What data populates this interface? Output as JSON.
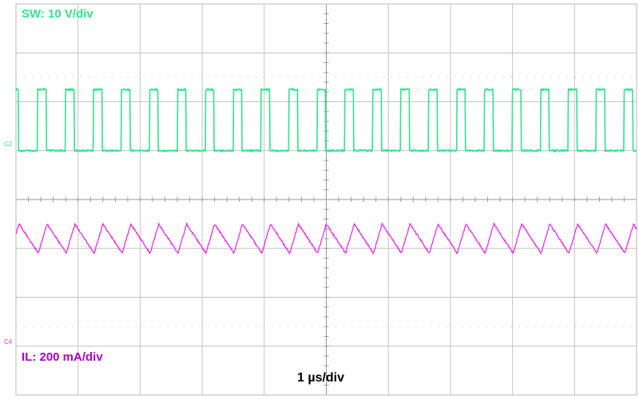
{
  "colors": {
    "background": "#ffffff",
    "frame": "#b8b8b8",
    "grid": "#c4c4c4",
    "center_axis": "#9a9a9a",
    "sw_trace": "#2ee68c",
    "il_trace": "#e633e6",
    "il_label": "#b000c8"
  },
  "labels": {
    "sw": "SW: 10 V/div",
    "il": "IL: 200 mA/div",
    "timebase": "1 µs/div",
    "c2_marker": "C2",
    "c4_marker": "C4"
  },
  "chart_data": {
    "type": "line",
    "title": "",
    "grid": true,
    "divisions": {
      "x": 10,
      "y": 8
    },
    "timebase": "1 µs/div",
    "switching_period_us": 0.45,
    "series": [
      {
        "name": "SW: 10 V/div",
        "channel": "C2",
        "waveform": "square",
        "low_div": 0,
        "high_div": 1.25,
        "duty_cycle": 0.31,
        "first_rise_div": 0.35
      },
      {
        "name": "IL: 200 mA/div",
        "channel": "C4",
        "waveform": "triangle",
        "offset_div": 4.7,
        "peak_div": 0.2,
        "trough_div": -0.4,
        "duty_cycle": 0.31,
        "first_peak_div": 0.5
      }
    ]
  }
}
